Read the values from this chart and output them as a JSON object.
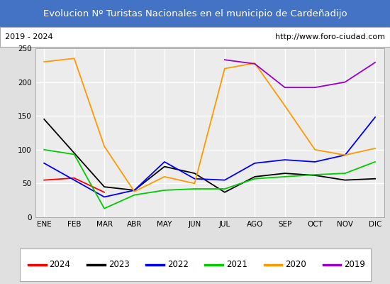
{
  "title": "Evolucion Nº Turistas Nacionales en el municipio de Cardeñadijo",
  "subtitle_left": "2019 - 2024",
  "subtitle_right": "http://www.foro-ciudad.com",
  "title_bg_color": "#4472c4",
  "title_text_color": "#ffffff",
  "months": [
    "ENE",
    "FEB",
    "MAR",
    "ABR",
    "MAY",
    "JUN",
    "JUL",
    "AGO",
    "SEP",
    "OCT",
    "NOV",
    "DIC"
  ],
  "ylim": [
    0,
    250
  ],
  "yticks": [
    0,
    50,
    100,
    150,
    200,
    250
  ],
  "series": {
    "2024": {
      "color": "#ff0000",
      "data": [
        55,
        58,
        37,
        null,
        null,
        null,
        null,
        null,
        null,
        null,
        null,
        null
      ]
    },
    "2023": {
      "color": "#000000",
      "data": [
        145,
        95,
        45,
        40,
        75,
        65,
        37,
        60,
        65,
        62,
        55,
        57
      ]
    },
    "2022": {
      "color": "#0000ff",
      "data": [
        80,
        55,
        30,
        40,
        82,
        57,
        55,
        80,
        85,
        82,
        92,
        148
      ]
    },
    "2021": {
      "color": "#00cc00",
      "data": [
        100,
        93,
        13,
        33,
        40,
        42,
        42,
        57,
        60,
        63,
        65,
        82
      ]
    },
    "2020": {
      "color": "#ff9900",
      "data": [
        230,
        235,
        105,
        38,
        60,
        50,
        220,
        228,
        165,
        100,
        92,
        102
      ]
    },
    "2019": {
      "color": "#9900cc",
      "data": [
        null,
        null,
        null,
        null,
        null,
        null,
        233,
        227,
        192,
        192,
        200,
        229
      ]
    }
  },
  "legend_order": [
    "2024",
    "2023",
    "2022",
    "2021",
    "2020",
    "2019"
  ],
  "bg_color": "#e0e0e0",
  "plot_bg_color": "#ececec",
  "grid_color": "#ffffff",
  "subtitle_bg": "#ffffff",
  "border_color": "#aaaaaa"
}
